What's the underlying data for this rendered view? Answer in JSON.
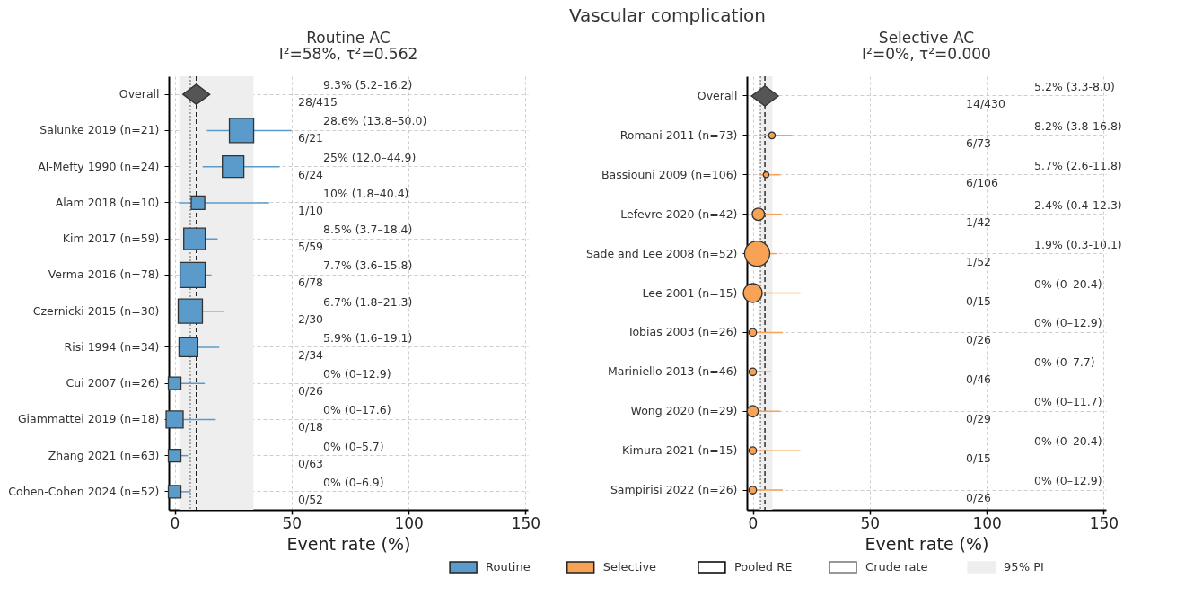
{
  "chart_data": [
    {
      "type": "bubble",
      "orientation": "horizontal",
      "title": "Routine AC",
      "subtitle": "I²=58%, τ²=0.562",
      "xlabel": "Event rate (%)",
      "xlim": [
        -2.5,
        151
      ],
      "xticks": [
        0,
        50,
        100,
        150
      ],
      "grid": true,
      "legend": "bottom",
      "marker": "square",
      "categories": [
        "Overall",
        "Salunke 2019 (n=21)",
        "Al-Mefty 1990 (n=24)",
        "Alam 2018 (n=10)",
        "Kim 2017 (n=59)",
        "Verma 2016 (n=78)",
        "Czernicki 2015 (n=30)",
        "Risi 1994 (n=34)",
        "Cui 2007 (n=26)",
        "Giammattei 2019 (n=18)",
        "Zhang 2021 (n=63)",
        "Cohen-Cohen 2024 (n=52)"
      ],
      "series": [
        {
          "name": "Routine",
          "color": "#5b9bcb",
          "values": [
            null,
            28.6,
            25,
            10,
            8.5,
            7.7,
            6.7,
            5.9,
            0,
            0,
            0,
            0
          ],
          "errors": [
            null,
            [
              13.8,
              50.0
            ],
            [
              12.0,
              44.9
            ],
            [
              1.8,
              40.4
            ],
            [
              3.7,
              18.4
            ],
            [
              3.6,
              15.8
            ],
            [
              1.8,
              21.3
            ],
            [
              1.6,
              19.1
            ],
            [
              0,
              12.9
            ],
            [
              0,
              17.6
            ],
            [
              0,
              5.7
            ],
            [
              0,
              6.9
            ]
          ],
          "sizes": [
            null,
            0.93,
            0.73,
            0.29,
            0.73,
            1,
            0.93,
            0.56,
            0.25,
            0.46,
            0.25,
            0.25
          ]
        },
        {
          "color": "#555555",
          "marker": "diamond",
          "values": [
            9.3,
            null,
            null,
            null,
            null,
            null,
            null,
            null,
            null,
            null,
            null,
            null
          ]
        }
      ],
      "ref_lines": [
        {
          "axis": "x",
          "value": 9.3,
          "label": "Pooled RE",
          "line_style": "dashed",
          "color": "#000000"
        },
        {
          "axis": "x",
          "value": 6.7,
          "label": "Crude rate",
          "line_style": "dotted",
          "color": "#777777"
        }
      ],
      "bands": [
        {
          "axis": "x",
          "from": 2.0,
          "to": 33.7,
          "label": "95% PI",
          "color": "#eeeeee"
        }
      ],
      "annotations": [
        "Vascular complication",
        "9.3% (5.2–16.2)",
        "28/415",
        "28.6% (13.8–50.0)",
        "6/21",
        "25% (12.0–44.9)",
        "6/24",
        "10% (1.8–40.4)",
        "1/10",
        "8.5% (3.7–18.4)",
        "5/59",
        "7.7% (3.6–15.8)",
        "6/78",
        "6.7% (1.8–21.3)",
        "2/30",
        "5.9% (1.6–19.1)",
        "2/34",
        "0% (0–12.9)",
        "0/26",
        "0% (0–17.6)",
        "0/18",
        "0% (0–5.7)",
        "0/63",
        "0% (0–6.9)",
        "0/52"
      ]
    },
    {
      "type": "bubble",
      "orientation": "horizontal",
      "title": "Selective AC",
      "subtitle": "I²=0%, τ²=0.000",
      "xlabel": "Event rate (%)",
      "xlim": [
        -2.5,
        151
      ],
      "xticks": [
        0,
        50,
        100,
        150
      ],
      "grid": true,
      "legend": "bottom",
      "marker": "circle",
      "categories": [
        "Overall",
        "Romani 2011 (n=73)",
        "Bassiouni 2009 (n=106)",
        "Lefevre 2020 (n=42)",
        "Sade and Lee 2008 (n=52)",
        "Lee 2001 (n=15)",
        "Tobias 2003 (n=26)",
        "Mariniello 2013 (n=46)",
        "Wong 2020 (n=29)",
        "Kimura 2021 (n=15)",
        "Sampirisi 2022 (n=26)"
      ],
      "series": [
        {
          "name": "Selective",
          "color": "#f7a254",
          "values": [
            null,
            8.2,
            5.7,
            2.4,
            1.9,
            0,
            0,
            0,
            0,
            0,
            0
          ],
          "errors": [
            null,
            [
              3.8,
              16.8
            ],
            [
              2.6,
              11.8
            ],
            [
              0.4,
              12.3
            ],
            [
              1.9,
              10.1
            ],
            [
              0,
              20.4
            ],
            [
              0,
              12.9
            ],
            [
              0,
              7.7
            ],
            [
              0,
              11.7
            ],
            [
              0,
              20.4
            ],
            [
              0,
              12.9
            ]
          ],
          "sizes": [
            null,
            0.07,
            0.05,
            0.24,
            1,
            0.56,
            0.09,
            0.09,
            0.2,
            0.09,
            0.09
          ]
        },
        {
          "color": "#555555",
          "marker": "diamond",
          "values": [
            5.2,
            null,
            null,
            null,
            null,
            null,
            null,
            null,
            null,
            null,
            null
          ]
        }
      ],
      "ref_lines": [
        {
          "axis": "x",
          "value": 5.2,
          "line_style": "dashed",
          "color": "#000000"
        },
        {
          "axis": "x",
          "value": 3.3,
          "line_style": "dotted",
          "color": "#777777"
        }
      ],
      "bands": [
        {
          "axis": "x",
          "from": 3.0,
          "to": 8.4,
          "color": "#eeeeee"
        }
      ],
      "annotations": [
        "5.2% (3.3-8.0)",
        "14/430",
        "8.2% (3.8-16.8)",
        "6/73",
        "5.7% (2.6-11.8)",
        "6/106",
        "2.4% (0.4-12.3)",
        "1/42",
        "1.9% (0.3-10.1)",
        "1/52",
        "0% (0–20.4)",
        "0/15",
        "0% (0–12.9)",
        "0/26",
        "0% (0–7.7)",
        "0/46",
        "0% (0–11.7)",
        "0/29",
        "0% (0–20.4)",
        "0/15",
        "0% (0–12.9)",
        "0/26"
      ]
    }
  ]
}
